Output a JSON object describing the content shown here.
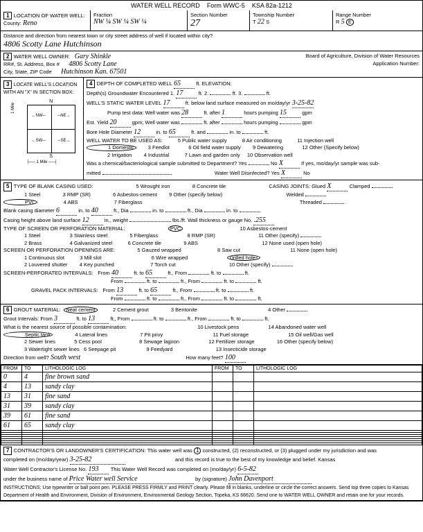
{
  "form": {
    "title": "WATER WELL RECORD",
    "form_no": "Form WWC-5",
    "ksa": "KSA 82a-1212"
  },
  "sec1": {
    "title": "LOCATION OF WATER WELL:",
    "county_label": "County:",
    "county": "Reno",
    "fraction_label": "Fraction",
    "fraction": "NW ¼  SW ¼  SW ¼",
    "section_label": "Section Number",
    "section": "27",
    "township_label": "Township Number",
    "township_t": "T",
    "township": "22",
    "township_s": "S",
    "range_label": "Range Number",
    "range_r": "R",
    "range": "5",
    "range_e": "E",
    "distance_label": "Distance and direction from nearest town or city street address of well if located within city?",
    "distance": "4806  Scotty  Lane   Hutchinson"
  },
  "sec2": {
    "title": "WATER WELL OWNER:",
    "owner": "Gary Shinkle",
    "rr_label": "RR#, St. Address, Box #",
    "rr": "4806  Scotty Lane",
    "city_label": "City, State, ZIP Code",
    "city": "Hutchinson  Kan.  67501",
    "board": "Board of Agriculture, Division of Water Resources",
    "app_label": "Application Number:"
  },
  "sec3": {
    "title": "LOCATE WELL'S LOCATION WITH AN \"X\" IN SECTION BOX:"
  },
  "sec4": {
    "title": "DEPTH OF COMPLETED WELL",
    "depth": "65",
    "elev_label": "ft. ELEVATION:",
    "depths_label": "Depth(s) Groundwater Encountered   1.",
    "d1": "17",
    "d2_label": "ft.   2.",
    "d3_label": "ft.   3.",
    "ft": "ft.",
    "static_label": "WELL'S STATIC WATER LEVEL",
    "static": "17",
    "static_after": "ft. below land surface measured on mo/day/yr",
    "static_date": "3-25-82",
    "pump_label": "Pump test data:  Well water was",
    "pump_val": "28",
    "pump_after": "ft. after",
    "pump_hours": "1",
    "pump_hours_after": "hours pumping",
    "pump_gpm": "15",
    "gpm": "gpm",
    "est_label": "Est. Yield",
    "est": "20",
    "est_after": "gpm;  Well water was",
    "est_ft_after": "ft. after",
    "est_hours_after": "hours pumping",
    "bore_label": "Bore Hole Diameter",
    "bore": "12",
    "bore_to": "in. to",
    "bore_depth": "65",
    "bore_ft": "ft. and",
    "bore_in": "in. to",
    "use_label": "WELL WATER TO BE USED AS:",
    "use1": "1 Domestic",
    "use2": "2 Irrigation",
    "use3": "3 Feedlot",
    "use4": "4 Industrial",
    "use5": "5 Public water supply",
    "use6": "6 Oil field water supply",
    "use7": "7 Lawn and garden only",
    "use8": "8 Air conditioning",
    "use9": "9 Dewatering",
    "use10": "10 Observation well",
    "use11": "11 Injection well",
    "use12": "12 Other (Specify below)",
    "chem_label": "Was a chemical/bacteriological sample submitted to Department?  Yes",
    "chem_no": "No",
    "chem_x": "X",
    "chem_after": "If yes, mo/day/yr sample was sub-",
    "chem_mitted": "mitted",
    "disinfect": "Water Well Disinfected?  Yes",
    "disinfect_x": "X",
    "disinfect_no": "No"
  },
  "sec5": {
    "title": "TYPE OF BLANK CASING USED:",
    "c1": "1 Steel",
    "c2": "2 Brass",
    "c3": "3 RMP (SR)",
    "c4": "4 ABS",
    "c5": "5 Wrought iron",
    "c6": "6 Asbestos-cement",
    "c7": "7 Fiberglass",
    "c8": "8 Concrete tile",
    "c9": "9 Other (specify below)",
    "joints_label": "CASING JOINTS: Glued",
    "joints_x": "X",
    "joints_clamped": "Clamped",
    "joints_welded": "Welded",
    "joints_threaded": "Threaded",
    "pvc": "PVC",
    "blank_label": "Blank casing diameter",
    "blank_dia": "6",
    "blank_to": "in. to",
    "blank_depth": "40",
    "blank_ft": "ft., Dia",
    "blank_in_to": "in. to",
    "blank_ft2": "ft., Dia",
    "casing_ht_label": "Casing height above land surface",
    "casing_ht": "12",
    "casing_in": "in., weight",
    "casing_lbs": "lbs./ft.  Wall thickness or gauge No.",
    "gauge": ".255",
    "screen_label": "TYPE OF SCREEN OR PERFORATION MATERIAL:",
    "s1": "1 Steel",
    "s2": "2 Brass",
    "s3": "3 Stainless steel",
    "s4": "4 Galvanized steel",
    "s5": "5 Fiberglass",
    "s6": "6 Concrete tile",
    "s7": "PVC",
    "s8": "8 RMP (SR)",
    "s9": "9 ABS",
    "s10": "10 Asbestos-cement",
    "s11": "11 Other (specify)",
    "s12": "12 None used (open hole)",
    "open_label": "SCREEN OR PERFORATION OPENINGS ARE:",
    "o1": "1 Continuous slot",
    "o2": "2 Louvered shutter",
    "o3": "3 Mill slot",
    "o4": "4 Key punched",
    "o5": "5 Gauzed wrapped",
    "o6": "6 Wire wrapped",
    "o7": "7 Torch cut",
    "o8": "8 Saw cut",
    "o9": "Drilled holes",
    "o10": "10 Other (specify)",
    "o11": "11 None (open hole)",
    "perf_label": "SCREEN-PERFORATED INTERVALS:",
    "from": "From",
    "to": "ft. to",
    "ft_from": "ft., From",
    "perf_from": "40",
    "perf_to": "65",
    "gravel_label": "GRAVEL PACK INTERVALS:",
    "gravel_from": "13",
    "gravel_to": "65"
  },
  "sec6": {
    "title": "GROUT MATERIAL:",
    "g1": "Neat cement",
    "g2": "2 Cement grout",
    "g3": "3 Bentonite",
    "g4": "4 Other",
    "gi_label": "Grout Intervals:   From",
    "gi_from": "3",
    "gi_to_label": "ft. to",
    "gi_to": "13",
    "gi_ft_from": "ft.,  From",
    "contam_label": "What is the nearest source of possible contamination:",
    "p1": "Septic tank",
    "p2": "2 Sewer lines",
    "p3": "3 Watertight sewer lines",
    "p4": "4 Lateral lines",
    "p5": "5 Cess pool",
    "p6": "6 Seepage pit",
    "p7": "7 Pit privy",
    "p8": "8 Sewage lagoon",
    "p9": "9 Feedyard",
    "p10": "10 Livestock pens",
    "p11": "11 Fuel storage",
    "p12": "12 Fertilizer storage",
    "p13": "13 Insecticide storage",
    "p14": "14 Abandoned water well",
    "p15": "15 Oil well/Gas well",
    "p16": "16 Other (specify below)",
    "dir_label": "Direction from well?",
    "dir": "South west",
    "feet_label": "How many feet?",
    "feet": "100",
    "col_from": "FROM",
    "col_to": "TO",
    "col_litho": "LITHOLOGIC LOG",
    "rows": [
      {
        "from": "0",
        "to": "4",
        "log": "fine brown sand"
      },
      {
        "from": "4",
        "to": "13",
        "log": "sandy clay"
      },
      {
        "from": "13",
        "to": "31",
        "log": "fine sand"
      },
      {
        "from": "31",
        "to": "39",
        "log": "sandy clay"
      },
      {
        "from": "39",
        "to": "61",
        "log": "fine sand"
      },
      {
        "from": "61",
        "to": "65",
        "log": "sandy clay"
      }
    ]
  },
  "sec7": {
    "title": "CONTRACTOR'S OR LANDOWNER'S CERTIFICATION:",
    "cert1": "This water well was",
    "cert_c": "constructed, (2) reconstructed, or (3) plugged under my jurisdiction and was",
    "comp_label": "completed on (mo/day/year)",
    "comp_date": "3-25-82",
    "cert2": "and this record is true to the best of my knowledge and belief. Kansas",
    "lic_label": "Water Well Contractor's License No.",
    "lic": "193",
    "cert3": "This Water Well Record was completed on (mo/day/yr)",
    "rec_date": "6-5-82",
    "bus_label": "under the business name of",
    "bus": "Price   Water well  Service",
    "sig_label": "by (signature)",
    "sig": "John Davenport",
    "instr": "INSTRUCTIONS: Use typewriter or ball point pen. PLEASE PRESS FIRMLY and PRINT clearly. Please fill in blanks, underline or circle the correct answers. Send top three copies to Kansas Department of Health and Environment, Division of Environment, Environmental Geology Section, Topeka, KS 66620. Send one to WATER WELL OWNER and retain one for your records."
  }
}
